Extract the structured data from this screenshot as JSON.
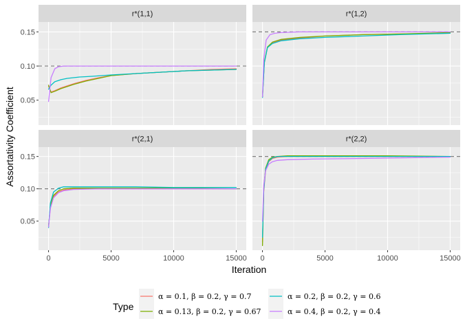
{
  "chart_data": {
    "type": "line",
    "xlabel": "Iteration",
    "ylabel": "Assortativity Coefficient",
    "x_ticks": [
      0,
      5000,
      10000,
      15000
    ],
    "x_tick_labels": [
      "0",
      "5000",
      "10000",
      "15000"
    ],
    "y_ticks": [
      0.05,
      0.1,
      0.15
    ],
    "y_tick_labels": [
      "0.05",
      "0.10",
      "0.15"
    ],
    "xlim": [
      -800,
      15800
    ],
    "ylim_top": [
      0.0135,
      0.1645
    ],
    "ylim_bottom": [
      0.005,
      0.1645
    ],
    "grid": true,
    "legend": {
      "title": "Type",
      "position": "bottom",
      "entries": [
        {
          "label": "α = 0.1, β = 0.2, γ = 0.7",
          "color": "#F8766D"
        },
        {
          "label": "α = 0.13, β = 0.2, γ = 0.67",
          "color": "#7CAE00"
        },
        {
          "label": "α = 0.2, β = 0.2, γ = 0.6",
          "color": "#00BFC4"
        },
        {
          "label": "α = 0.4, β = 0.2, γ = 0.4",
          "color": "#C77CFF"
        }
      ]
    },
    "panels": [
      {
        "title": "r*(1,1)",
        "reference": 0.1,
        "series": [
          {
            "name": "α = 0.1, β = 0.2, γ = 0.7",
            "x": [
              0,
              200,
              500,
              1000,
              2000,
              3000,
              4000,
              5000,
              7000,
              9000,
              11000,
              13000,
              15000
            ],
            "y": [
              0.07,
              0.062,
              0.064,
              0.068,
              0.074,
              0.079,
              0.083,
              0.086,
              0.089,
              0.091,
              0.093,
              0.095,
              0.096
            ]
          },
          {
            "name": "α = 0.13, β = 0.2, γ = 0.67",
            "x": [
              0,
              200,
              500,
              1000,
              2000,
              3000,
              4000,
              5000,
              7000,
              9000,
              11000,
              13000,
              15000
            ],
            "y": [
              0.072,
              0.061,
              0.063,
              0.067,
              0.073,
              0.078,
              0.082,
              0.086,
              0.089,
              0.091,
              0.093,
              0.094,
              0.095
            ]
          },
          {
            "name": "α = 0.2, β = 0.2, γ = 0.6",
            "x": [
              0,
              200,
              500,
              1000,
              1500,
              2500,
              3500,
              5000,
              7000,
              9000,
              11000,
              13000,
              15000
            ],
            "y": [
              0.066,
              0.072,
              0.077,
              0.08,
              0.082,
              0.084,
              0.085,
              0.087,
              0.089,
              0.091,
              0.093,
              0.094,
              0.095
            ]
          },
          {
            "name": "α = 0.4, β = 0.2, γ = 0.4",
            "x": [
              0,
              200,
              500,
              800,
              1200,
              2000,
              5000,
              10000,
              15000
            ],
            "y": [
              0.048,
              0.083,
              0.096,
              0.099,
              0.1,
              0.1,
              0.1,
              0.1,
              0.1
            ]
          }
        ]
      },
      {
        "title": "r*(1,2)",
        "reference": 0.15,
        "series": [
          {
            "name": "α = 0.1, β = 0.2, γ = 0.7",
            "x": [
              0,
              150,
              400,
              800,
              1500,
              3000,
              5000,
              8000,
              11000,
              15000
            ],
            "y": [
              0.055,
              0.105,
              0.127,
              0.134,
              0.138,
              0.141,
              0.144,
              0.146,
              0.147,
              0.148
            ]
          },
          {
            "name": "α = 0.13, β = 0.2, γ = 0.67",
            "x": [
              0,
              150,
              400,
              800,
              1500,
              3000,
              5000,
              8000,
              11000,
              15000
            ],
            "y": [
              0.055,
              0.106,
              0.128,
              0.135,
              0.139,
              0.142,
              0.144,
              0.146,
              0.147,
              0.149
            ]
          },
          {
            "name": "α = 0.2, β = 0.2, γ = 0.6",
            "x": [
              0,
              150,
              400,
              800,
              1500,
              3000,
              5000,
              8000,
              11000,
              15000
            ],
            "y": [
              0.054,
              0.105,
              0.127,
              0.133,
              0.137,
              0.14,
              0.142,
              0.144,
              0.146,
              0.148
            ]
          },
          {
            "name": "α = 0.4, β = 0.2, γ = 0.4",
            "x": [
              0,
              100,
              300,
              600,
              1000,
              1500,
              3000,
              6000,
              10000,
              15000
            ],
            "y": [
              0.055,
              0.11,
              0.138,
              0.146,
              0.148,
              0.149,
              0.15,
              0.15,
              0.15,
              0.15
            ]
          }
        ]
      },
      {
        "title": "r*(2,1)",
        "reference": 0.1,
        "series": [
          {
            "name": "α = 0.1, β = 0.2, γ = 0.7",
            "x": [
              0,
              150,
              400,
              800,
              1200,
              2000,
              4000,
              7000,
              10000,
              15000
            ],
            "y": [
              0.043,
              0.072,
              0.088,
              0.095,
              0.098,
              0.1,
              0.1,
              0.1,
              0.1,
              0.1
            ]
          },
          {
            "name": "α = 0.13, β = 0.2, γ = 0.67",
            "x": [
              0,
              150,
              400,
              800,
              1200,
              2000,
              4000,
              7000,
              10000,
              15000
            ],
            "y": [
              0.042,
              0.074,
              0.09,
              0.097,
              0.1,
              0.101,
              0.101,
              0.101,
              0.101,
              0.1
            ]
          },
          {
            "name": "α = 0.2, β = 0.2, γ = 0.6",
            "x": [
              0,
              150,
              400,
              800,
              1200,
              2000,
              4000,
              7000,
              10000,
              15000
            ],
            "y": [
              0.04,
              0.078,
              0.095,
              0.101,
              0.103,
              0.103,
              0.103,
              0.103,
              0.102,
              0.102
            ]
          },
          {
            "name": "α = 0.4, β = 0.2, γ = 0.4",
            "x": [
              0,
              150,
              400,
              800,
              1200,
              2000,
              4000,
              7000,
              10000,
              15000
            ],
            "y": [
              0.041,
              0.07,
              0.086,
              0.094,
              0.097,
              0.099,
              0.1,
              0.1,
              0.1,
              0.1
            ]
          }
        ]
      },
      {
        "title": "r*(2,2)",
        "reference": 0.15,
        "series": [
          {
            "name": "α = 0.1, β = 0.2, γ = 0.7",
            "x": [
              0,
              100,
              250,
              500,
              800,
              1200,
              2000,
              5000,
              10000,
              15000
            ],
            "y": [
              0.018,
              0.095,
              0.128,
              0.142,
              0.147,
              0.149,
              0.15,
              0.15,
              0.15,
              0.15
            ]
          },
          {
            "name": "α = 0.13, β = 0.2, γ = 0.67",
            "x": [
              0,
              100,
              250,
              500,
              800,
              1200,
              2000,
              5000,
              10000,
              15000
            ],
            "y": [
              0.012,
              0.1,
              0.132,
              0.145,
              0.149,
              0.15,
              0.151,
              0.151,
              0.151,
              0.15
            ]
          },
          {
            "name": "α = 0.2, β = 0.2, γ = 0.6",
            "x": [
              0,
              100,
              250,
              500,
              800,
              1200,
              2000,
              5000,
              10000,
              15000
            ],
            "y": [
              0.025,
              0.098,
              0.13,
              0.143,
              0.148,
              0.15,
              0.15,
              0.15,
              0.15,
              0.15
            ]
          },
          {
            "name": "α = 0.4, β = 0.2, γ = 0.4",
            "x": [
              0,
              100,
              250,
              500,
              800,
              1200,
              2000,
              4000,
              8000,
              15000
            ],
            "y": [
              0.05,
              0.105,
              0.128,
              0.138,
              0.142,
              0.144,
              0.145,
              0.146,
              0.147,
              0.149
            ]
          }
        ]
      }
    ]
  }
}
